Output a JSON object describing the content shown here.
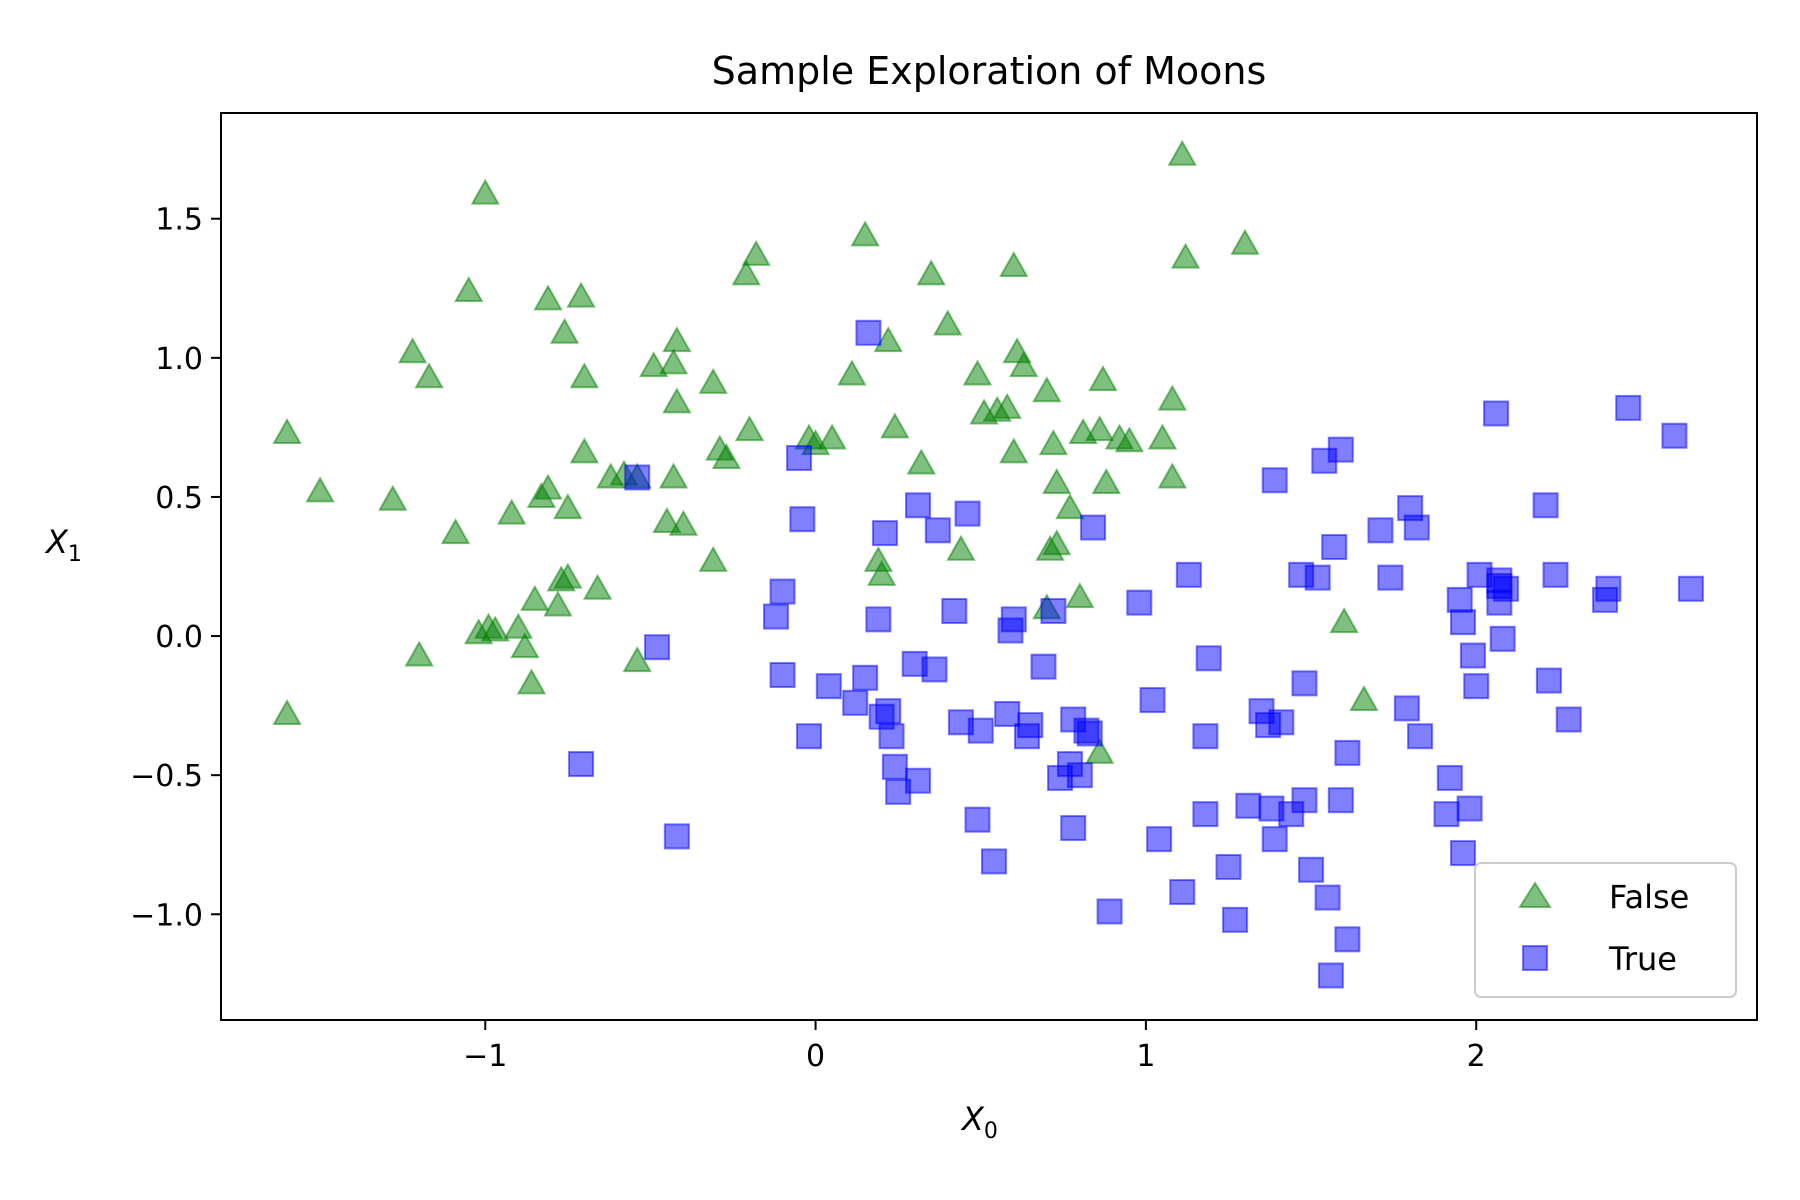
{
  "chart_data": {
    "type": "scatter",
    "title": "Sample Exploration of Moons",
    "xlabel_main": "X",
    "xlabel_sub": "0",
    "ylabel_main": "X",
    "ylabel_sub": "1",
    "xlim": [
      -1.8,
      2.85
    ],
    "ylim": [
      -1.38,
      1.88
    ],
    "xticks": [
      {
        "v": -1,
        "label": "−1"
      },
      {
        "v": 0,
        "label": "0"
      },
      {
        "v": 1,
        "label": "1"
      },
      {
        "v": 2,
        "label": "2"
      }
    ],
    "yticks": [
      {
        "v": 1.5,
        "label": "1.5"
      },
      {
        "v": 1.0,
        "label": "1.0"
      },
      {
        "v": 0.5,
        "label": "0.5"
      },
      {
        "v": 0.0,
        "label": "0.0"
      },
      {
        "v": -0.5,
        "label": "−0.5"
      },
      {
        "v": -1.0,
        "label": "−1.0"
      }
    ],
    "grid": false,
    "legend_position": "lower-right",
    "series": [
      {
        "name": "False",
        "marker": "triangle",
        "color": "#008000",
        "points": [
          [
            -1.6,
            0.73
          ],
          [
            -1.5,
            0.52
          ],
          [
            -1.6,
            -0.28
          ],
          [
            -1.28,
            0.49
          ],
          [
            -1.22,
            1.02
          ],
          [
            -1.17,
            0.93
          ],
          [
            -1.2,
            -0.07
          ],
          [
            -1.09,
            0.37
          ],
          [
            -1.05,
            1.24
          ],
          [
            -1.0,
            1.59
          ],
          [
            -1.02,
            0.01
          ],
          [
            -0.99,
            0.03
          ],
          [
            -0.97,
            0.02
          ],
          [
            -0.92,
            0.44
          ],
          [
            -0.9,
            0.03
          ],
          [
            -0.88,
            -0.04
          ],
          [
            -0.86,
            -0.17
          ],
          [
            -0.85,
            0.13
          ],
          [
            -0.83,
            0.5
          ],
          [
            -0.81,
            0.53
          ],
          [
            -0.81,
            1.21
          ],
          [
            -0.78,
            0.11
          ],
          [
            -0.77,
            0.2
          ],
          [
            -0.76,
            1.09
          ],
          [
            -0.75,
            0.46
          ],
          [
            -0.75,
            0.21
          ],
          [
            -0.71,
            1.22
          ],
          [
            -0.7,
            0.66
          ],
          [
            -0.7,
            0.93
          ],
          [
            -0.66,
            0.17
          ],
          [
            -0.62,
            0.57
          ],
          [
            -0.58,
            0.58
          ],
          [
            -0.54,
            0.57
          ],
          [
            -0.54,
            -0.09
          ],
          [
            -0.49,
            0.97
          ],
          [
            -0.45,
            0.41
          ],
          [
            -0.43,
            0.98
          ],
          [
            -0.43,
            0.57
          ],
          [
            -0.42,
            1.06
          ],
          [
            -0.42,
            0.84
          ],
          [
            -0.4,
            0.4
          ],
          [
            -0.31,
            0.91
          ],
          [
            -0.31,
            0.27
          ],
          [
            -0.29,
            0.67
          ],
          [
            -0.27,
            0.64
          ],
          [
            -0.2,
            0.74
          ],
          [
            -0.18,
            1.37
          ],
          [
            -0.21,
            1.3
          ],
          [
            -0.02,
            0.71
          ],
          [
            0.0,
            0.69
          ],
          [
            0.05,
            0.71
          ],
          [
            0.11,
            0.94
          ],
          [
            0.15,
            1.44
          ],
          [
            0.19,
            0.27
          ],
          [
            0.2,
            0.22
          ],
          [
            0.22,
            1.06
          ],
          [
            0.24,
            0.75
          ],
          [
            0.32,
            0.62
          ],
          [
            0.35,
            1.3
          ],
          [
            0.4,
            1.12
          ],
          [
            0.44,
            0.31
          ],
          [
            0.49,
            0.94
          ],
          [
            0.51,
            0.8
          ],
          [
            0.55,
            0.81
          ],
          [
            0.58,
            0.82
          ],
          [
            0.6,
            1.33
          ],
          [
            0.6,
            0.66
          ],
          [
            0.61,
            1.02
          ],
          [
            0.63,
            0.97
          ],
          [
            0.7,
            0.88
          ],
          [
            0.7,
            0.1
          ],
          [
            0.71,
            0.31
          ],
          [
            0.72,
            0.69
          ],
          [
            0.73,
            0.33
          ],
          [
            0.73,
            0.55
          ],
          [
            0.77,
            0.46
          ],
          [
            0.8,
            0.14
          ],
          [
            0.81,
            0.73
          ],
          [
            0.86,
            0.74
          ],
          [
            0.86,
            -0.42
          ],
          [
            0.87,
            0.92
          ],
          [
            0.88,
            0.55
          ],
          [
            0.92,
            0.71
          ],
          [
            0.95,
            0.7
          ],
          [
            1.05,
            0.71
          ],
          [
            1.08,
            0.85
          ],
          [
            1.08,
            0.57
          ],
          [
            1.11,
            1.73
          ],
          [
            1.12,
            1.36
          ],
          [
            1.3,
            1.41
          ],
          [
            1.6,
            0.05
          ],
          [
            1.66,
            -0.23
          ]
        ]
      },
      {
        "name": "True",
        "marker": "square",
        "color": "#0000ff",
        "points": [
          [
            -0.71,
            -0.46
          ],
          [
            -0.54,
            0.57
          ],
          [
            -0.48,
            -0.04
          ],
          [
            -0.42,
            -0.72
          ],
          [
            -0.12,
            0.07
          ],
          [
            -0.1,
            0.16
          ],
          [
            -0.1,
            -0.14
          ],
          [
            -0.05,
            0.64
          ],
          [
            -0.04,
            0.42
          ],
          [
            -0.02,
            -0.36
          ],
          [
            0.04,
            -0.18
          ],
          [
            0.12,
            -0.24
          ],
          [
            0.15,
            -0.15
          ],
          [
            0.16,
            1.09
          ],
          [
            0.19,
            0.06
          ],
          [
            0.2,
            -0.29
          ],
          [
            0.21,
            0.37
          ],
          [
            0.22,
            -0.27
          ],
          [
            0.23,
            -0.36
          ],
          [
            0.24,
            -0.47
          ],
          [
            0.25,
            -0.56
          ],
          [
            0.3,
            -0.1
          ],
          [
            0.31,
            0.47
          ],
          [
            0.31,
            -0.52
          ],
          [
            0.36,
            -0.12
          ],
          [
            0.37,
            0.38
          ],
          [
            0.42,
            0.09
          ],
          [
            0.44,
            -0.31
          ],
          [
            0.46,
            0.44
          ],
          [
            0.49,
            -0.66
          ],
          [
            0.5,
            -0.34
          ],
          [
            0.54,
            -0.81
          ],
          [
            0.58,
            -0.28
          ],
          [
            0.59,
            0.02
          ],
          [
            0.6,
            0.06
          ],
          [
            0.64,
            -0.36
          ],
          [
            0.65,
            -0.32
          ],
          [
            0.69,
            -0.11
          ],
          [
            0.72,
            0.09
          ],
          [
            0.74,
            -0.51
          ],
          [
            0.77,
            -0.46
          ],
          [
            0.78,
            -0.3
          ],
          [
            0.78,
            -0.69
          ],
          [
            0.8,
            -0.5
          ],
          [
            0.82,
            -0.34
          ],
          [
            0.83,
            -0.35
          ],
          [
            0.84,
            0.39
          ],
          [
            0.89,
            -0.99
          ],
          [
            0.98,
            0.12
          ],
          [
            1.02,
            -0.23
          ],
          [
            1.04,
            -0.73
          ],
          [
            1.11,
            -0.92
          ],
          [
            1.13,
            0.22
          ],
          [
            1.18,
            -0.64
          ],
          [
            1.18,
            -0.36
          ],
          [
            1.19,
            -0.08
          ],
          [
            1.25,
            -0.83
          ],
          [
            1.27,
            -1.02
          ],
          [
            1.31,
            -0.61
          ],
          [
            1.35,
            -0.27
          ],
          [
            1.37,
            -0.32
          ],
          [
            1.38,
            -0.62
          ],
          [
            1.39,
            0.56
          ],
          [
            1.39,
            -0.73
          ],
          [
            1.41,
            -0.31
          ],
          [
            1.44,
            -0.64
          ],
          [
            1.47,
            0.22
          ],
          [
            1.48,
            -0.59
          ],
          [
            1.48,
            -0.17
          ],
          [
            1.5,
            -0.84
          ],
          [
            1.52,
            0.21
          ],
          [
            1.54,
            0.63
          ],
          [
            1.55,
            -0.94
          ],
          [
            1.56,
            -1.22
          ],
          [
            1.57,
            0.32
          ],
          [
            1.59,
            0.67
          ],
          [
            1.59,
            -0.59
          ],
          [
            1.61,
            -0.42
          ],
          [
            1.61,
            -1.09
          ],
          [
            1.71,
            0.38
          ],
          [
            1.74,
            0.21
          ],
          [
            1.79,
            -0.26
          ],
          [
            1.8,
            0.46
          ],
          [
            1.82,
            0.39
          ],
          [
            1.83,
            -0.36
          ],
          [
            1.91,
            -0.64
          ],
          [
            1.92,
            -0.51
          ],
          [
            1.95,
            0.13
          ],
          [
            1.96,
            -0.78
          ],
          [
            1.96,
            0.05
          ],
          [
            1.98,
            -0.62
          ],
          [
            1.99,
            -0.07
          ],
          [
            2.0,
            -0.18
          ],
          [
            2.01,
            0.22
          ],
          [
            2.06,
            0.8
          ],
          [
            2.07,
            0.18
          ],
          [
            2.07,
            0.2
          ],
          [
            2.07,
            0.12
          ],
          [
            2.08,
            -0.01
          ],
          [
            2.09,
            0.17
          ],
          [
            2.21,
            0.47
          ],
          [
            2.22,
            -0.16
          ],
          [
            2.24,
            0.22
          ],
          [
            2.28,
            -0.3
          ],
          [
            2.39,
            0.13
          ],
          [
            2.4,
            0.17
          ],
          [
            2.46,
            0.82
          ],
          [
            2.6,
            0.72
          ],
          [
            2.65,
            0.17
          ]
        ]
      }
    ]
  }
}
